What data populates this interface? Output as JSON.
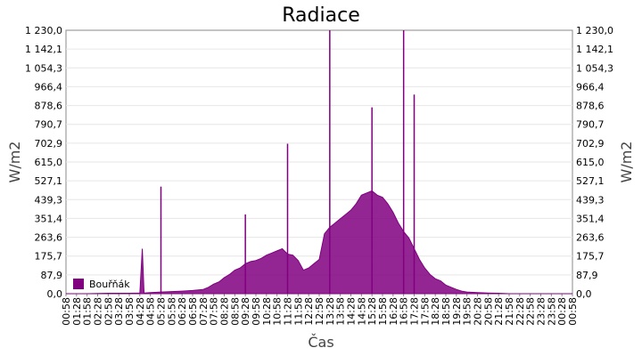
{
  "chart_data": {
    "type": "area",
    "title": "Radiace",
    "xlabel": "Čas",
    "ylabel": "W/m2",
    "ylabel_right": "W/m2",
    "ylim": [
      0,
      1230
    ],
    "y_ticks": [
      "0,0",
      "87,9",
      "175,7",
      "263,6",
      "351,4",
      "439,3",
      "527,1",
      "615,0",
      "702,9",
      "790,7",
      "878,6",
      "966,4",
      "1 054,3",
      "1 142,1",
      "1 230,0"
    ],
    "x_ticks": [
      "00:58",
      "01:28",
      "01:58",
      "02:28",
      "02:58",
      "03:28",
      "03:58",
      "04:28",
      "04:58",
      "05:28",
      "05:58",
      "06:28",
      "06:58",
      "07:28",
      "07:58",
      "08:28",
      "08:58",
      "09:28",
      "09:58",
      "10:28",
      "10:58",
      "11:28",
      "11:58",
      "12:28",
      "12:58",
      "13:28",
      "13:58",
      "14:28",
      "14:58",
      "15:28",
      "15:58",
      "16:28",
      "16:58",
      "17:28",
      "17:58",
      "18:28",
      "18:58",
      "19:28",
      "19:58",
      "20:28",
      "20:58",
      "21:28",
      "21:58",
      "22:28",
      "22:58",
      "23:28",
      "23:58",
      "00:28",
      "00:58"
    ],
    "grid": true,
    "legend_position": "bottom-left",
    "series": [
      {
        "name": "Bouřňák",
        "color": "#800080",
        "x": [
          "00:58",
          "01:58",
          "02:58",
          "03:58",
          "04:28",
          "04:35",
          "04:40",
          "04:58",
          "05:28",
          "05:58",
          "06:28",
          "06:58",
          "07:28",
          "07:43",
          "07:58",
          "08:13",
          "08:28",
          "08:43",
          "08:58",
          "09:13",
          "09:28",
          "09:43",
          "09:58",
          "10:13",
          "10:28",
          "10:43",
          "10:58",
          "11:13",
          "11:28",
          "11:43",
          "11:58",
          "12:13",
          "12:28",
          "12:43",
          "12:58",
          "13:13",
          "13:28",
          "13:43",
          "13:58",
          "14:13",
          "14:28",
          "14:43",
          "14:58",
          "15:13",
          "15:28",
          "15:43",
          "15:58",
          "16:13",
          "16:28",
          "16:43",
          "16:58",
          "17:13",
          "17:28",
          "17:43",
          "17:58",
          "18:13",
          "18:28",
          "18:43",
          "18:58",
          "19:13",
          "19:28",
          "19:43",
          "19:58",
          "20:28",
          "20:58",
          "21:28",
          "21:58",
          "22:28",
          "22:58",
          "23:28",
          "23:58",
          "00:28",
          "00:58"
        ],
        "values": [
          0,
          0,
          2,
          2,
          3,
          210,
          3,
          5,
          8,
          10,
          12,
          15,
          20,
          30,
          45,
          55,
          75,
          90,
          110,
          120,
          140,
          150,
          155,
          165,
          180,
          190,
          200,
          210,
          185,
          180,
          155,
          110,
          120,
          140,
          160,
          280,
          310,
          330,
          350,
          370,
          390,
          420,
          460,
          470,
          480,
          460,
          450,
          420,
          380,
          330,
          290,
          260,
          210,
          160,
          120,
          90,
          70,
          60,
          40,
          30,
          20,
          12,
          8,
          5,
          3,
          2,
          0,
          0,
          0,
          0,
          0,
          0,
          0
        ],
        "peaks": [
          {
            "x": "05:28",
            "y": 500
          },
          {
            "x": "13:28",
            "y": 1230
          },
          {
            "x": "16:58",
            "y": 1230
          },
          {
            "x": "09:28",
            "y": 370
          },
          {
            "x": "11:28",
            "y": 700
          },
          {
            "x": "15:28",
            "y": 870
          },
          {
            "x": "17:28",
            "y": 930
          }
        ]
      }
    ]
  }
}
